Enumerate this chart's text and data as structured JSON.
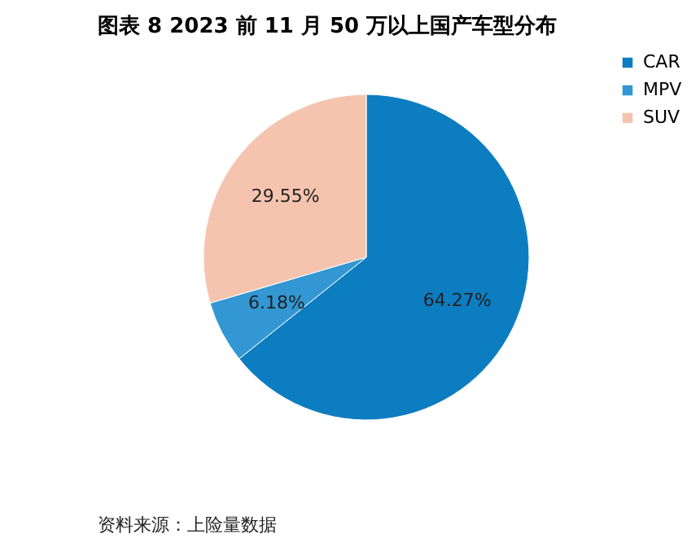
{
  "chart_data": {
    "type": "pie",
    "title": "图表 8 2023 前 11 月 50 万以上国产车型分布",
    "categories": [
      "CAR",
      "MPV",
      "SUV"
    ],
    "values": [
      64.27,
      6.18,
      29.55
    ],
    "colors": [
      "#0d7dc1",
      "#3297d3",
      "#f5c4af"
    ],
    "value_labels": [
      "64.27%",
      "6.18%",
      "29.55%"
    ],
    "legend": "right",
    "annotations": [
      "资料来源：上险量数据"
    ]
  }
}
